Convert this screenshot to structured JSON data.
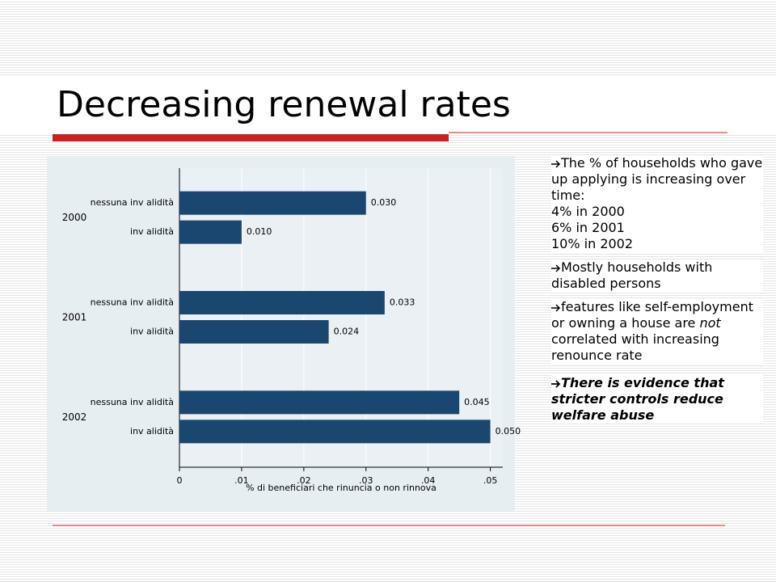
{
  "slide": {
    "title": "Decreasing renewal rates",
    "bullets": [
      {
        "lines": [
          "The % of households who gave up applying is increasing over time:",
          "4% in 2000",
          "6% in 2001",
          "10% in 2002"
        ]
      },
      {
        "lines": [
          "Mostly households with disabled persons"
        ]
      },
      {
        "lines": [
          "features like self-employment or owning a house are ",
          "not",
          " correlated with increasing renounce rate"
        ]
      },
      {
        "lines": [
          "There is evidence that stricter controls reduce welfare abuse"
        ]
      }
    ]
  },
  "chart_data": {
    "type": "hbar",
    "x_label": "% di beneficiari che rinuncia o non rinnova",
    "categories": [
      "2000",
      "2001",
      "2002"
    ],
    "series": [
      {
        "name": "nessuna inv alidità",
        "color": "#1a476f",
        "values": [
          0.03,
          0.033,
          0.045
        ],
        "value_labels": [
          "0.030",
          "0.033",
          "0.045"
        ]
      },
      {
        "name": "inv alidità",
        "color": "#1a476f",
        "values": [
          0.01,
          0.024,
          0.05
        ],
        "value_labels": [
          "0.010",
          "0.024",
          "0.050"
        ]
      }
    ],
    "xlim": [
      0,
      0.052
    ],
    "xticks": [
      0,
      {
        "value": 0.01,
        "label": ".01"
      },
      {
        "value": 0.02,
        "label": ".02"
      },
      {
        "value": 0.03,
        "label": ".03"
      },
      {
        "value": 0.04,
        "label": ".04"
      },
      {
        "value": 0.05,
        "label": ".05"
      }
    ],
    "grid": true
  }
}
